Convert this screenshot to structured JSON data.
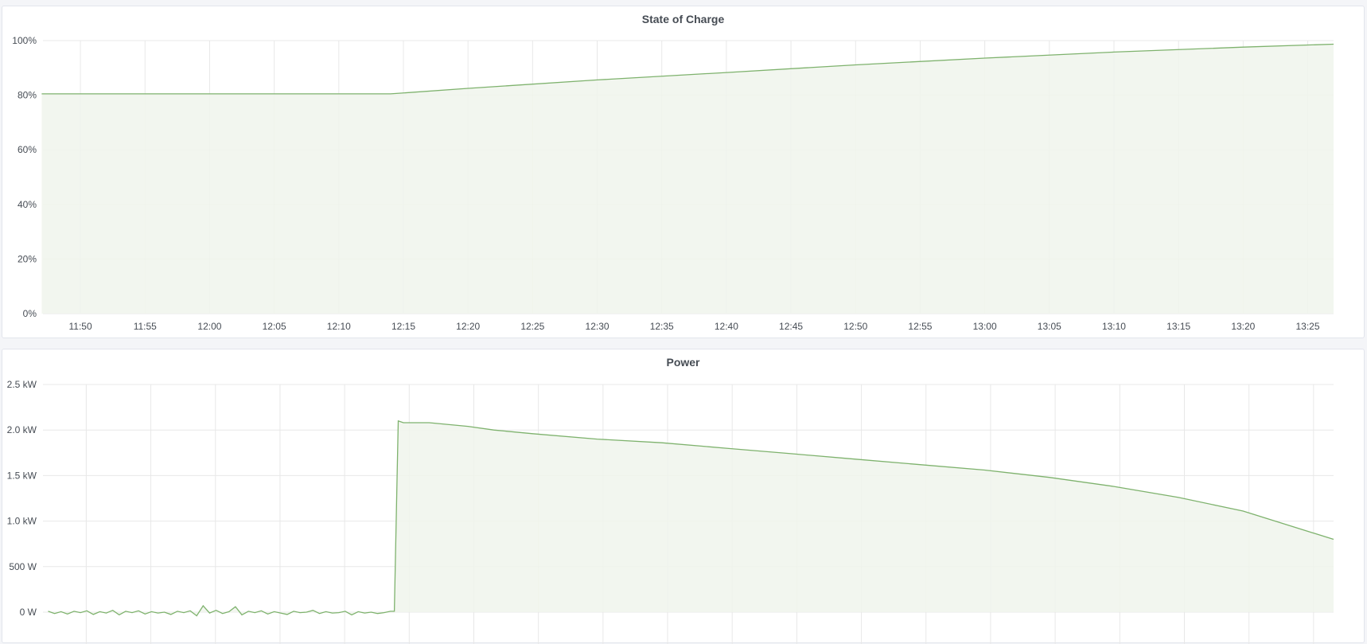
{
  "colors": {
    "series": "#7eb26d",
    "fill": "#f0f5ec",
    "grid": "#e8e8e8",
    "background": "#f4f5f8"
  },
  "chart_data": [
    {
      "type": "area",
      "title": "State of Charge",
      "xlim": [
        "11:47",
        "13:27"
      ],
      "ylim": [
        0,
        100
      ],
      "yticks": [
        0,
        20,
        40,
        60,
        80,
        100
      ],
      "ytick_labels": [
        "0%",
        "20%",
        "40%",
        "60%",
        "80%",
        "100%"
      ],
      "xtick_labels": [
        "11:50",
        "11:55",
        "12:00",
        "12:05",
        "12:10",
        "12:15",
        "12:20",
        "12:25",
        "12:30",
        "12:35",
        "12:40",
        "12:45",
        "12:50",
        "12:55",
        "13:00",
        "13:05",
        "13:10",
        "13:15",
        "13:20",
        "13:25"
      ],
      "grid": true,
      "legend": "none",
      "series": [
        {
          "x": [
            "11:47",
            "12:14",
            "12:20",
            "12:30",
            "12:40",
            "12:50",
            "13:00",
            "13:10",
            "13:20",
            "13:27"
          ],
          "y": [
            80.5,
            80.5,
            82.5,
            85.6,
            88.3,
            91.1,
            93.6,
            95.8,
            97.6,
            98.7
          ]
        }
      ]
    },
    {
      "type": "area",
      "title": "Power",
      "xlim": [
        "11:47",
        "13:27"
      ],
      "ylim": [
        0,
        2500
      ],
      "yticks": [
        0,
        500,
        1000,
        1500,
        2000,
        2500
      ],
      "ytick_labels": [
        "0 W",
        "500 W",
        "1.0 kW",
        "1.5 kW",
        "2.0 kW",
        "2.5 kW"
      ],
      "grid": true,
      "legend": "none",
      "series": [
        {
          "x": [
            "11:47.5",
            "11:48",
            "11:48.5",
            "11:49",
            "11:49.5",
            "11:50",
            "11:50.5",
            "11:51",
            "11:51.5",
            "11:52",
            "11:52.5",
            "11:53",
            "11:53.5",
            "11:54",
            "11:54.5",
            "11:55",
            "11:55.5",
            "11:56",
            "11:56.5",
            "11:57",
            "11:57.5",
            "11:58",
            "11:58.5",
            "11:59",
            "11:59.5",
            "12:00",
            "12:00.5",
            "12:01",
            "12:01.5",
            "12:02",
            "12:02.5",
            "12:03",
            "12:03.5",
            "12:04",
            "12:04.5",
            "12:05",
            "12:05.5",
            "12:06",
            "12:06.5",
            "12:07",
            "12:07.5",
            "12:08",
            "12:08.5",
            "12:09",
            "12:09.5",
            "12:10",
            "12:10.5",
            "12:11",
            "12:11.5",
            "12:12",
            "12:12.5",
            "12:13",
            "12:13.5",
            "12:14",
            "12:14.3",
            "12:14.6",
            "12:15",
            "12:17",
            "12:20",
            "12:22",
            "12:25",
            "12:30",
            "12:35",
            "12:40",
            "12:45",
            "12:50",
            "12:55",
            "13:00",
            "13:05",
            "13:10",
            "13:15",
            "13:20",
            "13:27"
          ],
          "y": [
            10,
            -15,
            5,
            -20,
            10,
            -5,
            15,
            -25,
            5,
            -10,
            20,
            -30,
            10,
            -5,
            15,
            -20,
            5,
            -10,
            0,
            -25,
            10,
            -5,
            15,
            -40,
            70,
            -10,
            20,
            -15,
            5,
            60,
            -30,
            10,
            -5,
            15,
            -20,
            5,
            -10,
            -25,
            10,
            -5,
            0,
            20,
            -15,
            5,
            -10,
            -5,
            10,
            -30,
            5,
            -10,
            0,
            -15,
            -5,
            10,
            10,
            2100,
            2080,
            2080,
            2040,
            2000,
            1960,
            1900,
            1860,
            1800,
            1740,
            1680,
            1620,
            1560,
            1480,
            1380,
            1260,
            1110,
            800
          ]
        }
      ]
    }
  ]
}
